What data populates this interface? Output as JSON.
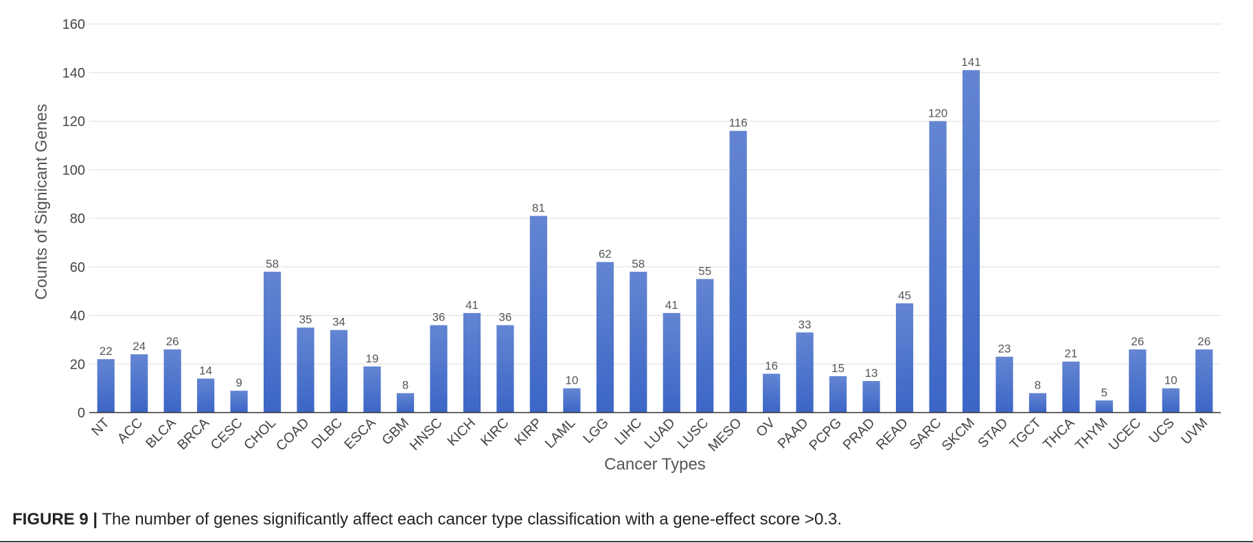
{
  "caption": {
    "label": "FIGURE 9 |",
    "text": "The number of genes significantly affect each cancer type classification with a gene-effect score >0.3."
  },
  "colors": {
    "bar_top": "#6385d2",
    "bar_bottom": "#3c66c6",
    "grid": "#dddddd",
    "axis": "#333333"
  },
  "chart_data": {
    "type": "bar",
    "title": "",
    "xlabel": "Cancer Types",
    "ylabel": "Counts of Signicant Genes",
    "ylim": [
      0,
      160
    ],
    "yticks": [
      0,
      20,
      40,
      60,
      80,
      100,
      120,
      140,
      160
    ],
    "grid": true,
    "legend": "none",
    "categories": [
      "NT",
      "ACC",
      "BLCA",
      "BRCA",
      "CESC",
      "CHOL",
      "COAD",
      "DLBC",
      "ESCA",
      "GBM",
      "HNSC",
      "KICH",
      "KIRC",
      "KIRP",
      "LAML",
      "LGG",
      "LIHC",
      "LUAD",
      "LUSC",
      "MESO",
      "OV",
      "PAAD",
      "PCPG",
      "PRAD",
      "READ",
      "SARC",
      "SKCM",
      "STAD",
      "TGCT",
      "THCA",
      "THYM",
      "UCEC",
      "UCS",
      "UVM"
    ],
    "values": [
      22,
      24,
      26,
      14,
      9,
      58,
      35,
      34,
      19,
      8,
      36,
      41,
      36,
      81,
      10,
      62,
      58,
      41,
      55,
      116,
      16,
      33,
      15,
      13,
      45,
      120,
      141,
      23,
      8,
      21,
      5,
      26,
      10,
      26
    ]
  }
}
